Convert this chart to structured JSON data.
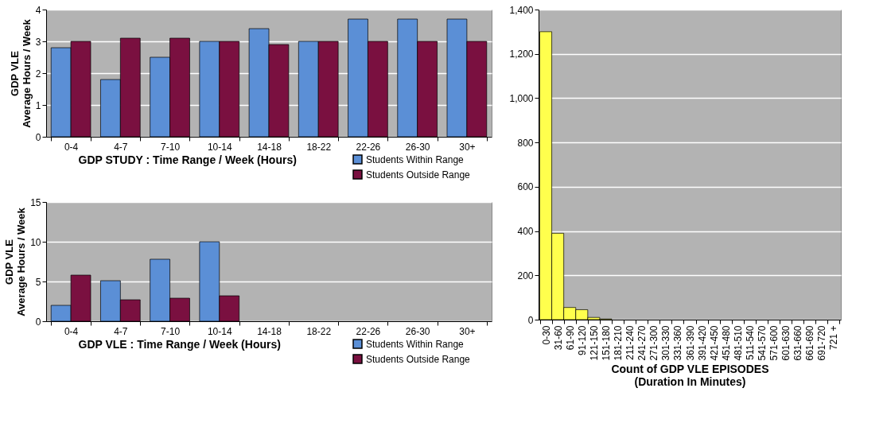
{
  "chart_data": [
    {
      "type": "bar",
      "categories": [
        "0-4",
        "4-7",
        "7-10",
        "10-14",
        "14-18",
        "18-22",
        "22-26",
        "26-30",
        "30+"
      ],
      "xlabel": "GDP STUDY : Time Range / Week (Hours)",
      "ylabel": "GDP VLE\nAverage Hours / Week",
      "ylim": [
        0,
        4
      ],
      "yticks": [
        0,
        1,
        2,
        3,
        4
      ],
      "grid": "y",
      "legend": "bottom right",
      "series": [
        {
          "name": "Students Within Range",
          "color": "#5b8fd6",
          "values": [
            2.8,
            1.8,
            2.5,
            3.0,
            3.4,
            3.0,
            3.7,
            3.7,
            3.7
          ]
        },
        {
          "name": "Students Outside Range",
          "color": "#7a1040",
          "values": [
            3.0,
            3.1,
            3.1,
            3.0,
            2.9,
            3.0,
            3.0,
            3.0,
            3.0
          ]
        }
      ]
    },
    {
      "type": "bar",
      "categories": [
        "0-4",
        "4-7",
        "7-10",
        "10-14",
        "14-18",
        "18-22",
        "22-26",
        "26-30",
        "30+"
      ],
      "xlabel": "GDP VLE : Time Range / Week (Hours)",
      "ylabel": "GDP VLE\nAverage Hours / Week",
      "ylim": [
        0,
        15
      ],
      "yticks": [
        0,
        5,
        10,
        15
      ],
      "grid": "y",
      "legend": "bottom right",
      "series": [
        {
          "name": "Students Within Range",
          "color": "#5b8fd6",
          "values": [
            2.0,
            5.1,
            7.8,
            10.0,
            null,
            null,
            null,
            null,
            null
          ]
        },
        {
          "name": "Students Outside Range",
          "color": "#7a1040",
          "values": [
            5.8,
            2.7,
            2.9,
            3.2,
            null,
            null,
            null,
            null,
            null
          ]
        }
      ]
    },
    {
      "type": "bar",
      "categories": [
        "0-30",
        "31-60",
        "61-90",
        "91-120",
        "121-150",
        "151-180",
        "181-210",
        "211-240",
        "241-270",
        "271-300",
        "301-330",
        "331-360",
        "361-390",
        "391-420",
        "421-450",
        "451-480",
        "481-510",
        "511-540",
        "541-570",
        "571-600",
        "601-630",
        "631-660",
        "661-690",
        "691-720",
        "721 +"
      ],
      "xlabel": "Count of GDP VLE EPISODES\n(Duration In Minutes)",
      "ylim": [
        0,
        1400
      ],
      "yticks": [
        0,
        200,
        400,
        600,
        800,
        {
          "value": 1000,
          "label": "1,000"
        },
        {
          "value": 1200,
          "label": "1,200"
        },
        {
          "value": 1400,
          "label": "1,400"
        }
      ],
      "grid": "y",
      "series": [
        {
          "color": "#ffff4d",
          "values": [
            1300,
            390,
            55,
            45,
            10,
            3,
            0,
            0,
            0,
            0,
            0,
            0,
            0,
            0,
            0,
            0,
            0,
            0,
            0,
            0,
            0,
            0,
            0,
            0,
            0
          ]
        }
      ]
    }
  ]
}
